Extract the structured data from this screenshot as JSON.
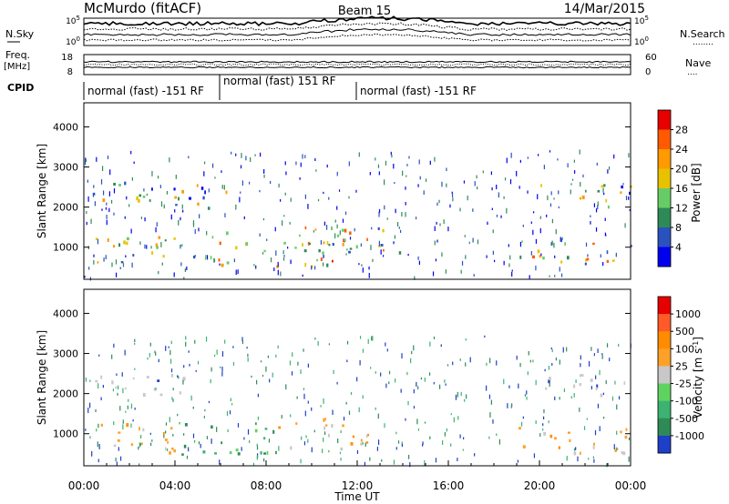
{
  "header": {
    "station": "McMurdo (fitACF)",
    "beam": "Beam 15",
    "date": "14/Mar/2015"
  },
  "top_panels": {
    "nsky_label": "N.Sky",
    "nsky_top": "10^5",
    "nsky_bottom": "10^0",
    "nsearch_label": "N.Search",
    "nsearch_dots": "........",
    "nsearch_top": "10^5",
    "nsearch_bottom": "10^0",
    "freq_label": "Freq.",
    "freq_unit": "[MHz]",
    "freq_top": "18",
    "freq_bottom": "8",
    "nave_label": "Nave",
    "nave_dots": "....",
    "nave_top": "60",
    "nave_bottom": "0",
    "cpid_label": "CPID",
    "modes": [
      "normal (fast) -151 RF",
      "normal (fast) 151 RF",
      "normal (fast) -151 RF"
    ]
  },
  "chart_data": [
    {
      "type": "heatmap",
      "panel": "power",
      "ylabel": "Slant Range [km]",
      "yticks": [
        "1000",
        "2000",
        "3000",
        "4000"
      ],
      "ylim": [
        200,
        4600
      ],
      "xlim_hours": [
        0,
        24
      ],
      "colorbar_label": "Power [dB]",
      "colorbar_ticks": [
        "4",
        "8",
        "12",
        "16",
        "20",
        "24",
        "28"
      ],
      "colorbar_colors": [
        "#0000ee",
        "#2a52be",
        "#2e8b57",
        "#66cd66",
        "#e8c200",
        "#ff9a00",
        "#ff5a00",
        "#e60000"
      ],
      "scatter_regions": [
        {
          "t0": 0.0,
          "t1": 3.5,
          "r0": 2100,
          "r1": 2650,
          "level": 3
        },
        {
          "t0": 3.0,
          "t1": 7.0,
          "r0": 2000,
          "r1": 2600,
          "level": 3
        },
        {
          "t0": 0.0,
          "t1": 6.0,
          "r0": 550,
          "r1": 1300,
          "level": 4
        },
        {
          "t0": 6.0,
          "t1": 11.5,
          "r0": 500,
          "r1": 1400,
          "level": 5
        },
        {
          "t0": 9.5,
          "t1": 14.0,
          "r0": 800,
          "r1": 1600,
          "level": 4
        },
        {
          "t0": 19.0,
          "t1": 24.0,
          "r0": 600,
          "r1": 1200,
          "level": 4
        },
        {
          "t0": 20.0,
          "t1": 24.0,
          "r0": 2000,
          "r1": 2600,
          "level": 3
        }
      ]
    },
    {
      "type": "heatmap",
      "panel": "velocity",
      "ylabel": "Slant Range [km]",
      "yticks": [
        "1000",
        "2000",
        "3000",
        "4000"
      ],
      "ylim": [
        200,
        4600
      ],
      "xlim_hours": [
        0,
        24
      ],
      "colorbar_label": "Velocity [m s^-1]",
      "colorbar_ticks": [
        "1000",
        "500",
        "100",
        "25",
        "-25",
        "-100",
        "-500",
        "-1000"
      ],
      "colorbar_colors": [
        "#1e3fc8",
        "#2e8b57",
        "#3cb371",
        "#5fd35f",
        "#c8c8c8",
        "#ffa028",
        "#ff8c00",
        "#ff5a28",
        "#e60000"
      ],
      "scatter_regions": [
        {
          "t0": 0.0,
          "t1": 4.0,
          "r0": 550,
          "r1": 1300,
          "vel": "-100"
        },
        {
          "t0": 4.0,
          "t1": 8.5,
          "r0": 500,
          "r1": 1300,
          "vel": "500"
        },
        {
          "t0": 8.5,
          "t1": 12.5,
          "r0": 600,
          "r1": 1400,
          "vel": "-100"
        },
        {
          "t0": 0.0,
          "t1": 5.5,
          "r0": 2000,
          "r1": 2500,
          "vel": "0"
        },
        {
          "t0": 20.0,
          "t1": 24.0,
          "r0": 1950,
          "r1": 2500,
          "vel": "0"
        },
        {
          "t0": 19.0,
          "t1": 24.0,
          "r0": 500,
          "r1": 1200,
          "vel": "-100"
        }
      ]
    }
  ],
  "xaxis": {
    "ticks": [
      "00:00",
      "04:00",
      "08:00",
      "12:00",
      "16:00",
      "20:00",
      "00:00"
    ],
    "label": "Time UT"
  }
}
